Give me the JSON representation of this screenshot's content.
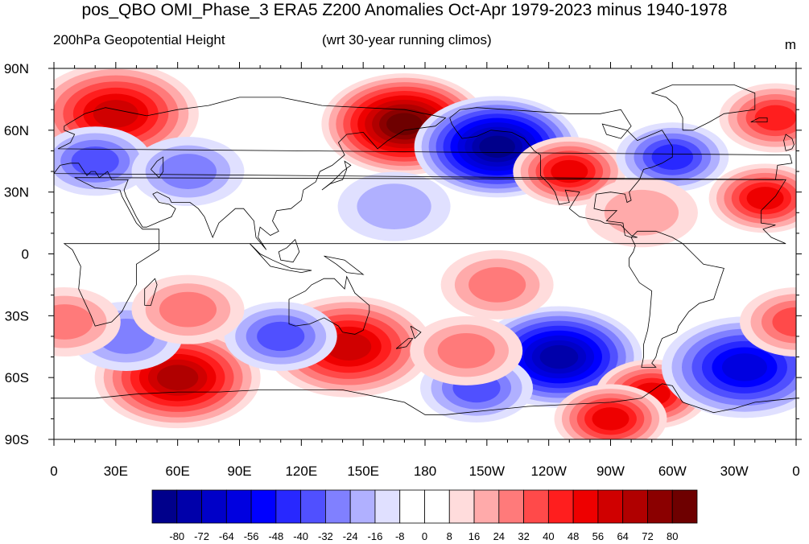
{
  "title": "pos_QBO OMI_Phase_3 ERA5 Z200 Anomalies Oct-Apr 1979-2023 minus 1940-1978",
  "left_subtitle": "200hPa Geopotential Height",
  "center_subtitle": "(wrt 30-year running climos)",
  "units": "m",
  "map": {
    "projection": "cylindrical equidistant",
    "lon_range": [
      0,
      360
    ],
    "lat_range": [
      -90,
      90
    ],
    "lat_ticks": [
      "90N",
      "60N",
      "30N",
      "0",
      "30S",
      "60S",
      "90S"
    ],
    "lon_ticks": [
      "0",
      "30E",
      "60E",
      "90E",
      "120E",
      "150E",
      "180",
      "150W",
      "120W",
      "90W",
      "60W",
      "30W",
      "0"
    ],
    "coastlines": true,
    "anomaly_centers": [
      {
        "lon": 30,
        "lat": 68,
        "value": 56
      },
      {
        "lon": 170,
        "lat": 63,
        "value": 80
      },
      {
        "lon": 215,
        "lat": 52,
        "value": -80
      },
      {
        "lon": 250,
        "lat": 40,
        "value": 48
      },
      {
        "lon": 350,
        "lat": 66,
        "value": 40
      },
      {
        "lon": 345,
        "lat": 27,
        "value": 48
      },
      {
        "lon": 20,
        "lat": 45,
        "value": -32
      },
      {
        "lon": 65,
        "lat": 40,
        "value": -24
      },
      {
        "lon": 300,
        "lat": 47,
        "value": -40
      },
      {
        "lon": 165,
        "lat": 23,
        "value": -16
      },
      {
        "lon": 60,
        "lat": -60,
        "value": 64
      },
      {
        "lon": 143,
        "lat": -45,
        "value": 56
      },
      {
        "lon": 245,
        "lat": -50,
        "value": -72
      },
      {
        "lon": 205,
        "lat": -65,
        "value": -32
      },
      {
        "lon": 290,
        "lat": -68,
        "value": 48
      },
      {
        "lon": 270,
        "lat": -80,
        "value": 48
      },
      {
        "lon": 335,
        "lat": -55,
        "value": -56
      },
      {
        "lon": 110,
        "lat": -40,
        "value": -32
      },
      {
        "lon": 35,
        "lat": -40,
        "value": -24
      },
      {
        "lon": 65,
        "lat": -27,
        "value": 24
      },
      {
        "lon": 5,
        "lat": -33,
        "value": 24
      },
      {
        "lon": 215,
        "lat": -15,
        "value": 24
      },
      {
        "lon": 360,
        "lat": -33,
        "value": 32
      },
      {
        "lon": 285,
        "lat": 20,
        "value": 16
      },
      {
        "lon": 200,
        "lat": -47,
        "value": 24
      }
    ]
  },
  "colorbar": {
    "labels": [
      "-80",
      "-72",
      "-64",
      "-56",
      "-48",
      "-40",
      "-32",
      "-24",
      "-16",
      "-8",
      "0",
      "8",
      "16",
      "24",
      "32",
      "40",
      "48",
      "56",
      "64",
      "72",
      "80"
    ],
    "colors": [
      "#00008b",
      "#0000aa",
      "#0000c8",
      "#0000e0",
      "#0000ff",
      "#2828ff",
      "#5050ff",
      "#8080ff",
      "#b0b0ff",
      "#e0e0ff",
      "#ffffff",
      "#ffffff",
      "#ffdcdc",
      "#ffaaaa",
      "#ff7a7a",
      "#ff4a4a",
      "#ff1e1e",
      "#ee0000",
      "#d00000",
      "#b00000",
      "#8b0000",
      "#6e0000"
    ]
  }
}
